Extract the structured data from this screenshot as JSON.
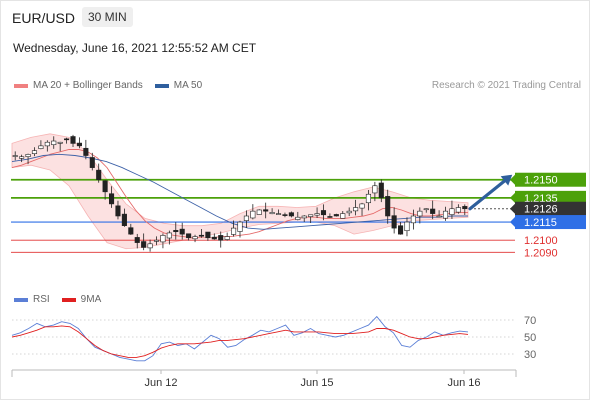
{
  "header": {
    "symbol": "EUR/USD",
    "timeframe": "30 MIN",
    "datetime": "Wednesday, June 16, 2021 12:55:52 AM CET",
    "copyright": "Research © 2021 Trading Central"
  },
  "legend_price": [
    {
      "label": "MA 20 + Bollinger Bands",
      "color": "#f08080"
    },
    {
      "label": "MA 50",
      "color": "#2f5f9e"
    }
  ],
  "legend_rsi": [
    {
      "label": "RSI",
      "color": "#5b7fd6"
    },
    {
      "label": "9MA",
      "color": "#e02020"
    }
  ],
  "chart_data": [
    {
      "type": "candlestick",
      "x_labels": [
        "Jun 12",
        "Jun 15",
        "Jun 16"
      ],
      "ylim": [
        1.2077,
        1.2206
      ],
      "levels": [
        {
          "value": 1.215,
          "label": "1.2150",
          "kind": "resistance",
          "color": "#4ca10a"
        },
        {
          "value": 1.2135,
          "label": "1.2135",
          "kind": "resistance",
          "color": "#4ca10a"
        },
        {
          "value": 1.2126,
          "label": "1.2126",
          "kind": "last",
          "color": "#333333"
        },
        {
          "value": 1.2115,
          "label": "1.2115",
          "kind": "pivot",
          "color": "#2f6fe6"
        },
        {
          "value": 1.21,
          "label": "1.2100",
          "kind": "support",
          "color": "#e03030"
        },
        {
          "value": 1.209,
          "label": "1.2090",
          "kind": "support",
          "color": "#e03030"
        }
      ],
      "close_series": [
        1.217,
        1.2169,
        1.2171,
        1.2174,
        1.2178,
        1.2181,
        1.2182,
        1.2181,
        1.2183,
        1.218,
        1.2178,
        1.217,
        1.216,
        1.215,
        1.214,
        1.213,
        1.212,
        1.2112,
        1.2105,
        1.2098,
        1.2094,
        1.2097,
        1.21,
        1.2104,
        1.2106,
        1.2107,
        1.2105,
        1.2102,
        1.2103,
        1.2104,
        1.2102,
        1.2101,
        1.21,
        1.2103,
        1.211,
        1.2115,
        1.212,
        1.2124,
        1.2125,
        1.2124,
        1.2123,
        1.2122,
        1.2121,
        1.212,
        1.2119,
        1.212,
        1.2121,
        1.2122,
        1.2121,
        1.2119,
        1.212,
        1.2122,
        1.2124,
        1.2127,
        1.213,
        1.2138,
        1.2145,
        1.2135,
        1.212,
        1.211,
        1.2105,
        1.2115,
        1.212,
        1.2124,
        1.2126,
        1.2122,
        1.212,
        1.2124,
        1.2126,
        1.2127,
        1.2126
      ],
      "ma20": [
        1.216,
        1.2162,
        1.2165,
        1.2168,
        1.2171,
        1.2173,
        1.2175,
        1.2175,
        1.2173,
        1.2168,
        1.216,
        1.2148,
        1.2136,
        1.2125,
        1.2116,
        1.211,
        1.2106,
        1.2104,
        1.2103,
        1.2102,
        1.2102,
        1.2102,
        1.2103,
        1.2103,
        1.2104,
        1.2105,
        1.2107,
        1.211,
        1.2113,
        1.2116,
        1.2118,
        1.2119,
        1.2119,
        1.2118,
        1.2118,
        1.2118,
        1.2119,
        1.212,
        1.2122,
        1.2126,
        1.2127,
        1.2125,
        1.2122,
        1.212,
        1.212,
        1.2121,
        1.2122,
        1.2123,
        1.2123
      ],
      "ma50": [
        1.2165,
        1.2167,
        1.217,
        1.2171,
        1.217,
        1.2168,
        1.2165,
        1.216,
        1.2154,
        1.2148,
        1.2141,
        1.2134,
        1.2127,
        1.212,
        1.2114,
        1.211,
        1.2109,
        1.211,
        1.2111,
        1.2112,
        1.2113,
        1.2114,
        1.2115,
        1.2116,
        1.2117,
        1.2118,
        1.2119,
        1.2119,
        1.212,
        1.212
      ],
      "bb_upper": [
        1.218,
        1.2185,
        1.2188,
        1.2185,
        1.2172,
        1.215,
        1.213,
        1.2118,
        1.2114,
        1.2112,
        1.2112,
        1.2114,
        1.2122,
        1.2128,
        1.2128,
        1.2127,
        1.2128,
        1.2135,
        1.214,
        1.2144,
        1.214,
        1.2135,
        1.2133,
        1.2132,
        1.2131
      ],
      "bb_lower": [
        1.216,
        1.2162,
        1.2158,
        1.2145,
        1.212,
        1.2098,
        1.2093,
        1.2094,
        1.2097,
        1.21,
        1.2103,
        1.2106,
        1.211,
        1.2113,
        1.2114,
        1.2115,
        1.2115,
        1.2112,
        1.2105,
        1.2108,
        1.2112,
        1.2116,
        1.2117,
        1.2118,
        1.2119
      ],
      "forecast_arrow": {
        "from": 1.2126,
        "to": 1.215
      }
    },
    {
      "type": "line",
      "title": "RSI",
      "y_ticks": [
        70,
        50,
        30
      ],
      "ylim": [
        15,
        85
      ],
      "rsi": [
        52,
        55,
        60,
        66,
        62,
        64,
        68,
        66,
        60,
        48,
        38,
        34,
        30,
        26,
        24,
        22,
        22,
        28,
        42,
        44,
        40,
        42,
        36,
        44,
        52,
        48,
        38,
        40,
        47,
        52,
        58,
        56,
        60,
        64,
        52,
        55,
        60,
        54,
        52,
        50,
        52,
        56,
        60,
        64,
        74,
        62,
        55,
        40,
        38,
        46,
        50,
        56,
        52,
        55,
        57,
        56
      ],
      "rsi_ma9": [
        50,
        52,
        55,
        58,
        62,
        62,
        63,
        62,
        56,
        48,
        40,
        34,
        30,
        28,
        26,
        26,
        28,
        32,
        37,
        40,
        42,
        42,
        42,
        43,
        44,
        46,
        46,
        47,
        48,
        50,
        52,
        54,
        56,
        58,
        56,
        56,
        56,
        56,
        55,
        54,
        54,
        54,
        55,
        56,
        60,
        60,
        58,
        54,
        50,
        48,
        48,
        50,
        52,
        53,
        54,
        53
      ]
    }
  ]
}
